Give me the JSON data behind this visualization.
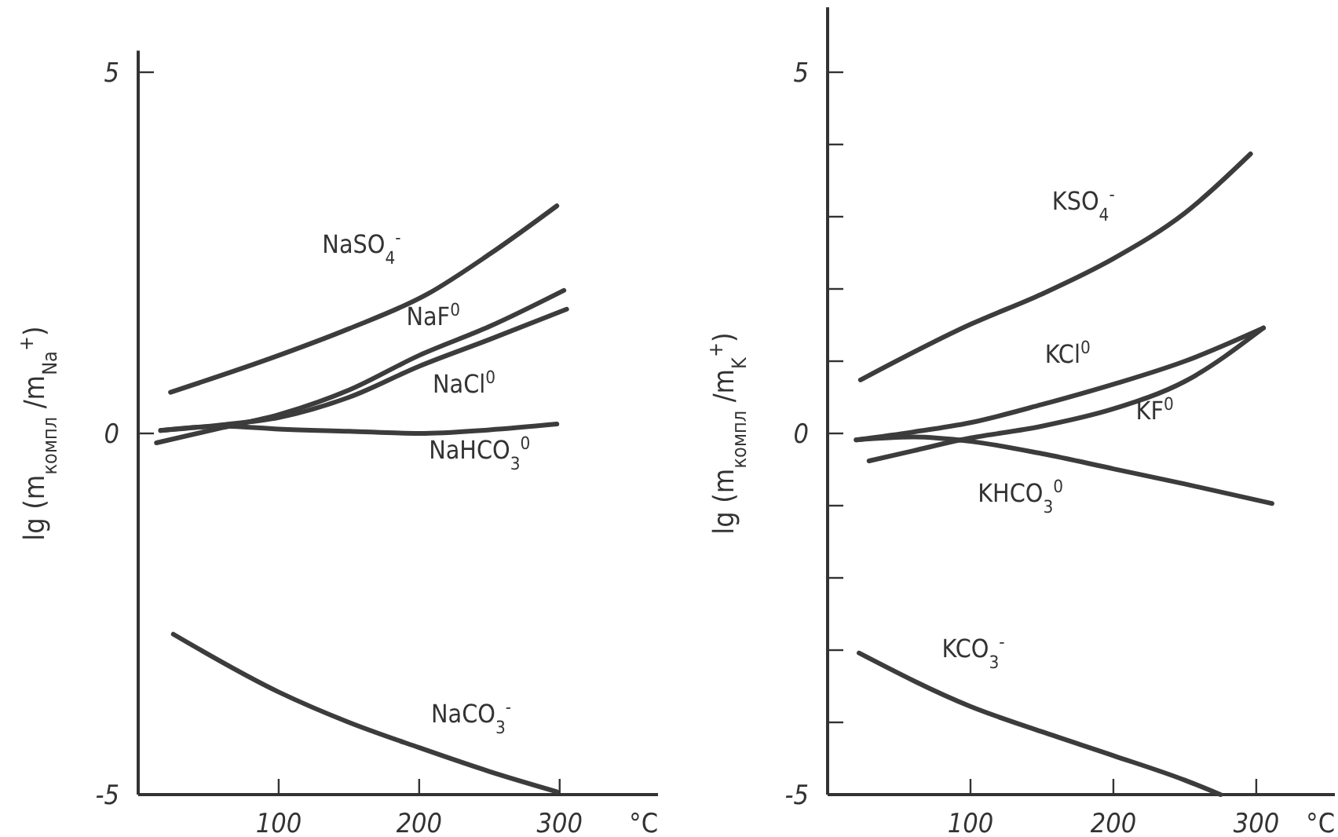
{
  "chart_data": [
    {
      "type": "line",
      "xlabel": "°C",
      "ylabel": "lg (m$_{компл}$ /m$_{Na}$$^{+}$)",
      "xlim": [
        0,
        370
      ],
      "xticks": [
        100,
        200,
        300
      ],
      "ylim": [
        -5,
        5.3
      ],
      "yticks": [
        -5,
        0,
        5
      ],
      "grid": false,
      "series": [
        {
          "name": "NaSO$_{4}$$^{-}$",
          "color": "#3c3c3c",
          "x": [
            23,
            100,
            150,
            206,
            250,
            298
          ],
          "values": [
            0.57,
            1.08,
            1.45,
            1.93,
            2.48,
            3.15
          ]
        },
        {
          "name": "NaF$^{0}$",
          "color": "#3c3c3c",
          "x": [
            13,
            60,
            100,
            150,
            200,
            250,
            303
          ],
          "values": [
            -0.13,
            0.08,
            0.26,
            0.6,
            1.08,
            1.48,
            1.98
          ]
        },
        {
          "name": "NaCl$^{0}$",
          "color": "#3c3c3c",
          "x": [
            16,
            60,
            100,
            150,
            200,
            250,
            305
          ],
          "values": [
            0.04,
            0.12,
            0.22,
            0.5,
            0.93,
            1.3,
            1.72
          ]
        },
        {
          "name": "NaHCO$_{3}$$^{0}$",
          "color": "#3c3c3c",
          "x": [
            16,
            60,
            100,
            150,
            200,
            250,
            298
          ],
          "values": [
            0.04,
            0.1,
            0.06,
            0.03,
            0.0,
            0.05,
            0.13
          ]
        },
        {
          "name": "NaCO$_{3}$$^{-}$",
          "color": "#3c3c3c",
          "x": [
            25,
            100,
            150,
            200,
            250,
            298
          ],
          "values": [
            -2.78,
            -3.58,
            -4.0,
            -4.35,
            -4.68,
            -4.96
          ]
        }
      ]
    },
    {
      "type": "line",
      "xlabel": "°C",
      "ylabel": "lg (m$_{компл}$ /m$_{K}$$^{+}$)",
      "xlim": [
        0,
        355
      ],
      "xticks": [
        100,
        200,
        300
      ],
      "ylim": [
        -5,
        5.9
      ],
      "yticks": [
        -5,
        {
          "value": -4,
          "label": null
        },
        {
          "value": -3,
          "label": null
        },
        {
          "value": -2,
          "label": null
        },
        {
          "value": -1,
          "label": null
        },
        0,
        {
          "value": 1,
          "label": null
        },
        {
          "value": 2,
          "label": null
        },
        {
          "value": 3,
          "label": null
        },
        {
          "value": 4,
          "label": null
        },
        5
      ],
      "grid": false,
      "series": [
        {
          "name": "KSO$_{4}$$^{-}$",
          "color": "#3c3c3c",
          "x": [
            23,
            100,
            150,
            200,
            250,
            296
          ],
          "values": [
            0.74,
            1.51,
            1.93,
            2.42,
            3.05,
            3.87
          ]
        },
        {
          "name": "KCl$^{0}$",
          "color": "#3c3c3c",
          "x": [
            20,
            60,
            100,
            150,
            200,
            250,
            305
          ],
          "values": [
            -0.09,
            0.02,
            0.15,
            0.4,
            0.68,
            1.0,
            1.46
          ]
        },
        {
          "name": "KF$^{0}$",
          "color": "#3c3c3c",
          "x": [
            29,
            60,
            93,
            150,
            200,
            250,
            305
          ],
          "values": [
            -0.38,
            -0.24,
            -0.09,
            0.1,
            0.34,
            0.72,
            1.46
          ]
        },
        {
          "name": "KHCO$_{3}$$^{0}$",
          "color": "#3c3c3c",
          "x": [
            20,
            60,
            100,
            150,
            200,
            250,
            311
          ],
          "values": [
            -0.09,
            -0.05,
            -0.11,
            -0.28,
            -0.49,
            -0.7,
            -0.97
          ]
        },
        {
          "name": "KCO$_{3}$$^{-}$",
          "color": "#3c3c3c",
          "x": [
            22,
            100,
            150,
            200,
            250,
            275
          ],
          "values": [
            -3.04,
            -3.78,
            -4.13,
            -4.46,
            -4.8,
            -5.0
          ]
        }
      ]
    }
  ]
}
